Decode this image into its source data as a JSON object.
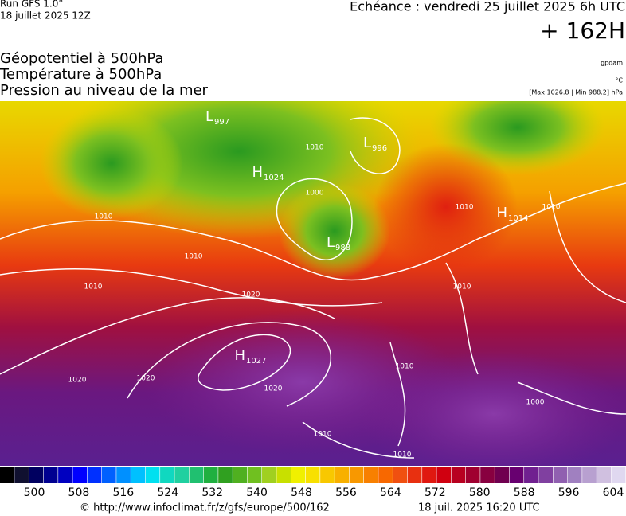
{
  "header": {
    "run": "Run GFS 1.0°",
    "run_date": "18 juillet 2025 12Z",
    "valid": "Echéance : vendredi 25 juillet 2025 6h UTC",
    "lead": "+ 162H"
  },
  "layers": [
    "Géopotentiel à 500hPa",
    "Température à 500hPa",
    "Pression au niveau de la mer"
  ],
  "units": {
    "geopotential": "gpdam",
    "temperature": "°C",
    "pressure": "[Max 1026.8 | Min 988.2] hPa"
  },
  "centers": [
    {
      "kind": "L",
      "value": 997
    },
    {
      "kind": "L",
      "value": 996
    },
    {
      "kind": "H",
      "value": 1024
    },
    {
      "kind": "L",
      "value": 988
    },
    {
      "kind": "H",
      "value": 1014
    },
    {
      "kind": "H",
      "value": 1027
    }
  ],
  "isobar_labels": [
    1010,
    1000,
    1010,
    1010,
    1010,
    1020,
    1020,
    1020,
    1020,
    1010,
    1010,
    1010,
    1010,
    1000,
    1010,
    1010
  ],
  "colorbar": {
    "ticks": [
      500,
      508,
      516,
      524,
      532,
      540,
      548,
      556,
      564,
      572,
      580,
      588,
      596,
      604
    ]
  },
  "footer": {
    "url": "© http://www.infoclimat.fr/z/gfs/europe/500/162",
    "timestamp": "18 juil. 2025 16:20 UTC"
  }
}
